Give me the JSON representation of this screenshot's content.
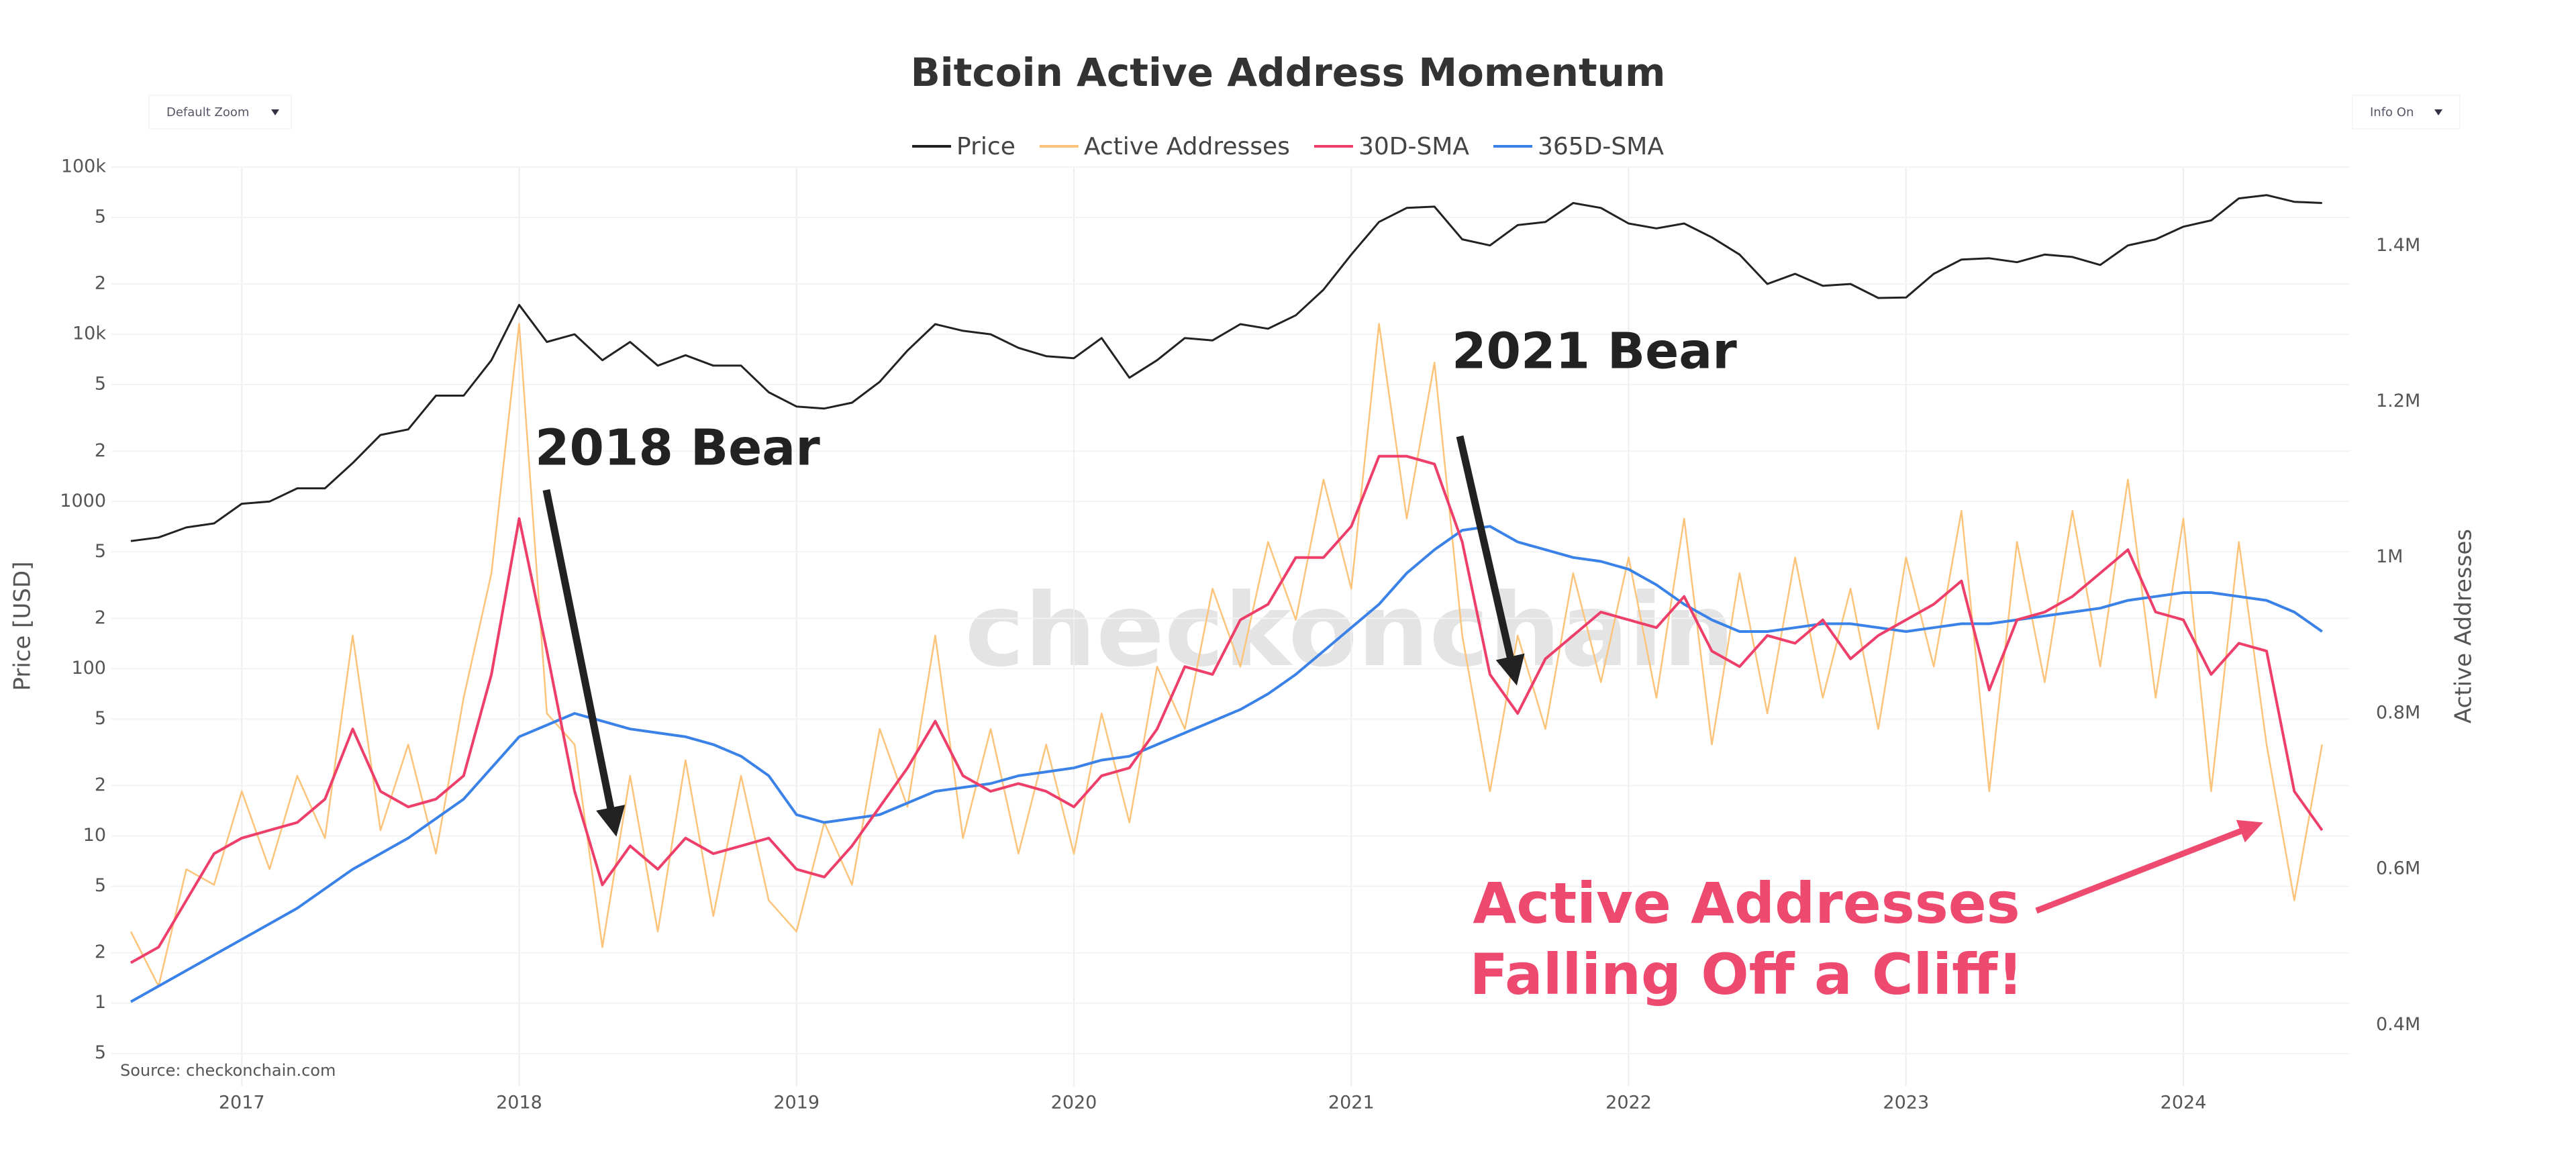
{
  "chart_data": {
    "type": "line",
    "title": "Bitcoin Active Address Momentum",
    "controls": {
      "zoom": "Default Zoom",
      "info": "Info On"
    },
    "watermark": "checkonchain",
    "source": "Source: checkonchain.com",
    "annotations": [
      "2018 Bear",
      "2021 Bear",
      "Active Addresses",
      "Falling Off a Cliff!"
    ],
    "ylabel": "Price [USD]",
    "y2label": "Active Addresses",
    "ylog": true,
    "grid": true,
    "legend": "top",
    "xlim": [
      2016.53,
      2024.6
    ],
    "xticks": [
      2017,
      2018,
      2019,
      2020,
      2021,
      2022,
      2023,
      2024
    ],
    "ylim": [
      0.32,
      100000
    ],
    "yticks": [
      {
        "value": 100000,
        "label": "100k"
      },
      {
        "value": 50000,
        "label": "5"
      },
      {
        "value": 20000,
        "label": "2"
      },
      {
        "value": 10000,
        "label": "10k"
      },
      {
        "value": 5000,
        "label": "5"
      },
      {
        "value": 2000,
        "label": "2"
      },
      1000,
      {
        "value": 500,
        "label": "5"
      },
      {
        "value": 200,
        "label": "2"
      },
      100,
      {
        "value": 50,
        "label": "5"
      },
      {
        "value": 20,
        "label": "2"
      },
      10,
      5,
      2,
      1,
      {
        "value": 0.5,
        "label": "5"
      }
    ],
    "y2lim": [
      322000,
      1501000
    ],
    "y2ticks": [
      {
        "value": 400000,
        "label": "0.4M"
      },
      {
        "value": 600000,
        "label": "0.6M"
      },
      {
        "value": 800000,
        "label": "0.8M"
      },
      {
        "value": 1000000,
        "label": "1M"
      },
      {
        "value": 1200000,
        "label": "1.2M"
      },
      {
        "value": 1400000,
        "label": "1.4M"
      }
    ],
    "x": [
      2016.6,
      2016.7,
      2016.8,
      2016.9,
      2017.0,
      2017.1,
      2017.2,
      2017.3,
      2017.4,
      2017.5,
      2017.6,
      2017.7,
      2017.8,
      2017.9,
      2018.0,
      2018.1,
      2018.2,
      2018.3,
      2018.4,
      2018.5,
      2018.6,
      2018.7,
      2018.8,
      2018.9,
      2019.0,
      2019.1,
      2019.2,
      2019.3,
      2019.4,
      2019.5,
      2019.6,
      2019.7,
      2019.8,
      2019.9,
      2020.0,
      2020.1,
      2020.2,
      2020.3,
      2020.4,
      2020.5,
      2020.6,
      2020.7,
      2020.8,
      2020.9,
      2021.0,
      2021.1,
      2021.2,
      2021.3,
      2021.4,
      2021.5,
      2021.6,
      2021.7,
      2021.8,
      2021.9,
      2022.0,
      2022.1,
      2022.2,
      2022.3,
      2022.4,
      2022.5,
      2022.6,
      2022.7,
      2022.8,
      2022.9,
      2023.0,
      2023.1,
      2023.2,
      2023.3,
      2023.4,
      2023.5,
      2023.6,
      2023.7,
      2023.8,
      2023.9,
      2024.0,
      2024.1,
      2024.2,
      2024.3,
      2024.4,
      2024.5
    ],
    "series": [
      {
        "name": "Price",
        "color": "#222222",
        "axis": "y",
        "width": 3,
        "values": [
          580,
          610,
          700,
          740,
          970,
          1000,
          1200,
          1200,
          1700,
          2500,
          2700,
          4300,
          4300,
          7000,
          15000,
          9000,
          10000,
          7000,
          9000,
          6500,
          7500,
          6500,
          6500,
          4500,
          3700,
          3600,
          3900,
          5200,
          8000,
          11500,
          10500,
          10000,
          8300,
          7400,
          7200,
          9500,
          5500,
          7000,
          9500,
          9200,
          11500,
          10800,
          13000,
          18500,
          30000,
          47000,
          57000,
          58000,
          37000,
          34000,
          45000,
          47000,
          61000,
          57000,
          46000,
          43000,
          46000,
          38000,
          30000,
          20000,
          23000,
          19500,
          20000,
          16500,
          16600,
          23000,
          28000,
          28500,
          27000,
          30000,
          29000,
          26000,
          34000,
          37000,
          44000,
          48000,
          65000,
          68000,
          62000,
          61000
        ]
      },
      {
        "name": "Active Addresses",
        "color": "#fbc47a",
        "axis": "y2",
        "width": 2.5,
        "values": [
          520000,
          450000,
          600000,
          580000,
          700000,
          600000,
          720000,
          640000,
          900000,
          650000,
          760000,
          620000,
          820000,
          980000,
          1300000,
          800000,
          760000,
          500000,
          720000,
          520000,
          740000,
          540000,
          720000,
          560000,
          520000,
          660000,
          580000,
          780000,
          680000,
          900000,
          640000,
          780000,
          620000,
          760000,
          620000,
          800000,
          660000,
          860000,
          780000,
          960000,
          860000,
          1020000,
          920000,
          1100000,
          960000,
          1300000,
          1050000,
          1250000,
          900000,
          700000,
          900000,
          780000,
          980000,
          840000,
          1000000,
          820000,
          1050000,
          760000,
          980000,
          800000,
          1000000,
          820000,
          960000,
          780000,
          1000000,
          860000,
          1060000,
          700000,
          1020000,
          840000,
          1060000,
          860000,
          1100000,
          820000,
          1050000,
          700000,
          1020000,
          760000,
          560000,
          760000
        ]
      },
      {
        "name": "30D-SMA",
        "color": "#ee3e6a",
        "axis": "y2",
        "width": 4,
        "values": [
          480000,
          500000,
          560000,
          620000,
          640000,
          650000,
          660000,
          690000,
          780000,
          700000,
          680000,
          690000,
          720000,
          850000,
          1050000,
          880000,
          700000,
          580000,
          630000,
          600000,
          640000,
          620000,
          630000,
          640000,
          600000,
          590000,
          630000,
          680000,
          730000,
          790000,
          720000,
          700000,
          710000,
          700000,
          680000,
          720000,
          730000,
          780000,
          860000,
          850000,
          920000,
          940000,
          1000000,
          1000000,
          1040000,
          1130000,
          1130000,
          1120000,
          1020000,
          850000,
          800000,
          870000,
          900000,
          930000,
          920000,
          910000,
          950000,
          880000,
          860000,
          900000,
          890000,
          920000,
          870000,
          900000,
          920000,
          940000,
          970000,
          830000,
          920000,
          930000,
          950000,
          980000,
          1010000,
          930000,
          920000,
          850000,
          890000,
          880000,
          700000,
          650000
        ]
      },
      {
        "name": "365D-SMA",
        "color": "#3b82e8",
        "axis": "y2",
        "width": 4,
        "values": [
          430000,
          450000,
          470000,
          490000,
          510000,
          530000,
          550000,
          575000,
          600000,
          620000,
          640000,
          665000,
          690000,
          730000,
          770000,
          785000,
          800000,
          790000,
          780000,
          775000,
          770000,
          760000,
          745000,
          720000,
          670000,
          660000,
          665000,
          670000,
          685000,
          700000,
          705000,
          710000,
          720000,
          725000,
          730000,
          740000,
          745000,
          760000,
          775000,
          790000,
          805000,
          825000,
          850000,
          880000,
          910000,
          940000,
          980000,
          1010000,
          1035000,
          1040000,
          1020000,
          1010000,
          1000000,
          995000,
          985000,
          965000,
          940000,
          920000,
          905000,
          905000,
          910000,
          915000,
          915000,
          910000,
          905000,
          910000,
          915000,
          915000,
          920000,
          925000,
          930000,
          935000,
          945000,
          950000,
          955000,
          955000,
          950000,
          945000,
          930000,
          905000
        ]
      }
    ]
  }
}
